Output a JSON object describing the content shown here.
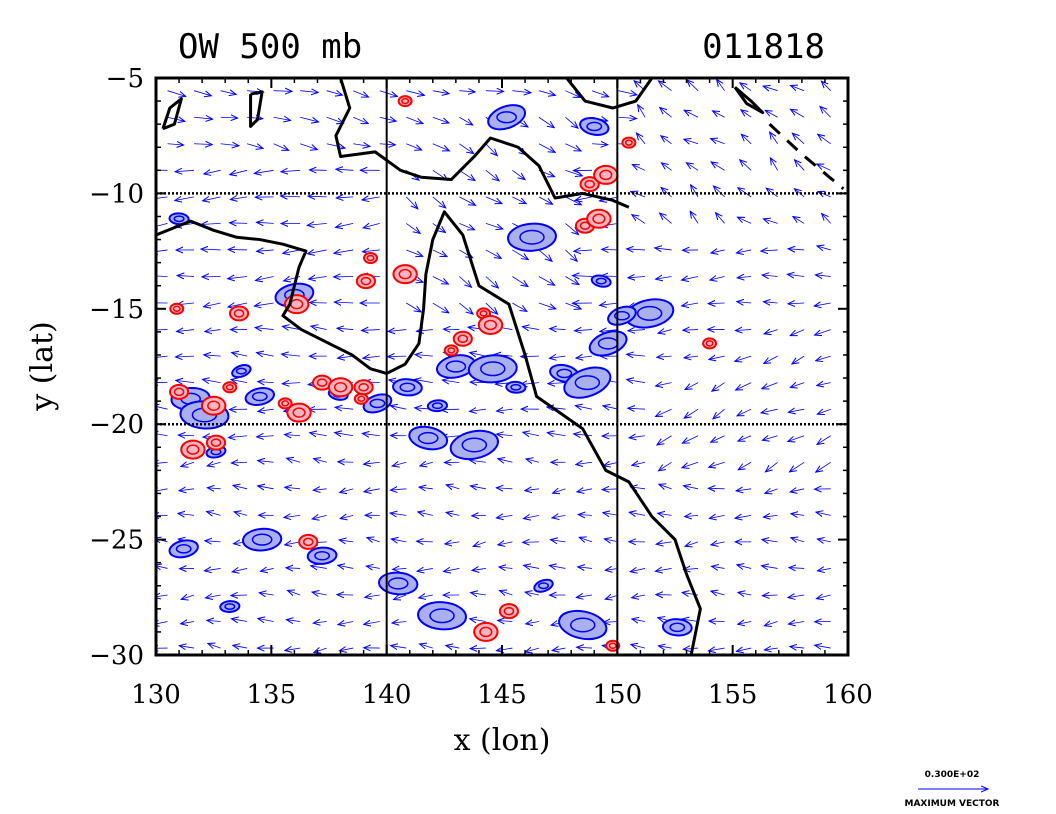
{
  "chart_data": {
    "type": "vector-field-contour-map",
    "title": "OW 500 mb",
    "date_label": "011818",
    "xlabel": "x (lon)",
    "ylabel": "y (lat)",
    "xlim": [
      130,
      160
    ],
    "ylim": [
      -30,
      -5
    ],
    "x_ticks": [
      130,
      135,
      140,
      145,
      150,
      155,
      160
    ],
    "y_ticks": [
      -5,
      -10,
      -15,
      -20,
      -25,
      -30
    ],
    "x_tick_labels": [
      "130",
      "135",
      "140",
      "145",
      "150",
      "155",
      "160"
    ],
    "y_tick_labels": [
      "−5",
      "−10",
      "−15",
      "−20",
      "−25",
      "−30"
    ],
    "dotted_grid_lat": [
      -10,
      -20
    ],
    "solid_grid_lon": [
      140,
      150
    ],
    "vector_legend": {
      "value_label": "0.300E+02",
      "caption": "MAXIMUM VECTOR"
    },
    "colors": {
      "vectors": "#0000ff",
      "negative_contours": "#0000ff",
      "negative_fill": "#aab0ee",
      "positive_contours": "#ff0000",
      "positive_fill": "#f4b6c0",
      "coastline": "#000000"
    },
    "coastline": [
      [
        [
          130.0,
          -11.8
        ],
        [
          131.5,
          -11.2
        ],
        [
          132.5,
          -11.6
        ],
        [
          133.5,
          -11.9
        ],
        [
          134.5,
          -12.0
        ],
        [
          135.5,
          -12.2
        ],
        [
          136.5,
          -12.5
        ],
        [
          136.2,
          -13.2
        ],
        [
          136.0,
          -14.0
        ],
        [
          135.8,
          -14.8
        ],
        [
          135.5,
          -15.3
        ],
        [
          136.3,
          -15.9
        ],
        [
          137.5,
          -16.5
        ],
        [
          138.5,
          -17.0
        ],
        [
          139.3,
          -17.6
        ],
        [
          140.0,
          -17.8
        ],
        [
          140.8,
          -17.4
        ],
        [
          141.4,
          -16.5
        ],
        [
          141.6,
          -15.0
        ],
        [
          141.7,
          -13.5
        ],
        [
          142.0,
          -12.0
        ],
        [
          142.5,
          -10.8
        ],
        [
          143.3,
          -11.8
        ],
        [
          144.0,
          -14.0
        ],
        [
          145.3,
          -14.8
        ],
        [
          146.0,
          -17.0
        ],
        [
          146.5,
          -18.8
        ],
        [
          147.5,
          -19.5
        ],
        [
          148.5,
          -20.2
        ],
        [
          149.5,
          -22.0
        ],
        [
          150.5,
          -22.5
        ],
        [
          151.5,
          -24.0
        ],
        [
          152.5,
          -25.0
        ],
        [
          153.0,
          -26.5
        ],
        [
          153.6,
          -28.0
        ],
        [
          153.2,
          -30.0
        ]
      ],
      [
        [
          138.0,
          -5.0
        ],
        [
          138.4,
          -6.3
        ],
        [
          137.8,
          -7.5
        ],
        [
          138.0,
          -8.4
        ],
        [
          139.5,
          -8.2
        ],
        [
          140.6,
          -9.0
        ],
        [
          141.5,
          -9.3
        ],
        [
          142.8,
          -9.4
        ],
        [
          143.8,
          -8.4
        ],
        [
          144.5,
          -7.6
        ],
        [
          145.7,
          -8.0
        ],
        [
          146.6,
          -8.8
        ],
        [
          147.3,
          -10.2
        ],
        [
          148.5,
          -10.0
        ],
        [
          149.8,
          -10.3
        ],
        [
          150.5,
          -10.6
        ]
      ],
      [
        [
          147.8,
          -5.0
        ],
        [
          148.6,
          -6.0
        ],
        [
          149.8,
          -6.3
        ],
        [
          150.8,
          -6.0
        ],
        [
          151.5,
          -5.0
        ]
      ],
      [
        [
          155.1,
          -5.4
        ],
        [
          155.8,
          -6.0
        ],
        [
          156.3,
          -6.5
        ],
        [
          155.6,
          -6.1
        ],
        [
          155.1,
          -5.4
        ]
      ],
      [
        [
          130.3,
          -7.2
        ],
        [
          130.6,
          -6.3
        ],
        [
          131.1,
          -5.9
        ],
        [
          130.8,
          -7.0
        ],
        [
          130.3,
          -7.2
        ]
      ],
      [
        [
          134.1,
          -5.7
        ],
        [
          134.6,
          -5.6
        ],
        [
          134.4,
          -6.8
        ],
        [
          134.1,
          -7.1
        ],
        [
          134.1,
          -5.7
        ]
      ]
    ],
    "coastline_dashed": [
      [
        [
          156.6,
          -7.0
        ],
        [
          158.0,
          -8.3
        ],
        [
          159.8,
          -9.8
        ]
      ]
    ],
    "positive_ow_maxima": [
      [
        140.8,
        -6.0
      ],
      [
        148.8,
        -9.6
      ],
      [
        149.5,
        -9.2
      ],
      [
        150.5,
        -7.8
      ],
      [
        148.6,
        -11.4
      ],
      [
        149.2,
        -11.1
      ],
      [
        139.3,
        -12.8
      ],
      [
        139.1,
        -13.8
      ],
      [
        140.8,
        -13.5
      ],
      [
        144.2,
        -15.2
      ],
      [
        143.3,
        -16.3
      ],
      [
        144.5,
        -15.7
      ],
      [
        142.8,
        -16.8
      ],
      [
        131.0,
        -18.6
      ],
      [
        132.5,
        -19.2
      ],
      [
        133.2,
        -18.4
      ],
      [
        137.2,
        -18.2
      ],
      [
        138.0,
        -18.4
      ],
      [
        138.9,
        -18.9
      ],
      [
        139.0,
        -18.4
      ],
      [
        136.2,
        -19.5
      ],
      [
        135.6,
        -19.1
      ],
      [
        132.6,
        -20.8
      ],
      [
        131.6,
        -21.1
      ],
      [
        130.9,
        -15.0
      ],
      [
        133.6,
        -15.2
      ],
      [
        136.1,
        -14.8
      ],
      [
        154.0,
        -16.5
      ],
      [
        145.3,
        -28.1
      ],
      [
        144.3,
        -29.0
      ],
      [
        149.8,
        -29.6
      ],
      [
        136.6,
        -25.1
      ]
    ],
    "negative_ow_minima": [
      [
        133.7,
        -17.7
      ],
      [
        134.5,
        -18.8
      ],
      [
        131.5,
        -18.9
      ],
      [
        132.1,
        -19.6
      ],
      [
        137.9,
        -18.7
      ],
      [
        139.6,
        -19.1
      ],
      [
        143.0,
        -17.5
      ],
      [
        144.6,
        -17.6
      ],
      [
        145.6,
        -18.4
      ],
      [
        147.7,
        -17.8
      ],
      [
        149.6,
        -16.5
      ],
      [
        151.4,
        -15.2
      ],
      [
        142.2,
        -19.2
      ],
      [
        140.9,
        -18.4
      ],
      [
        141.8,
        -20.6
      ],
      [
        148.7,
        -18.2
      ],
      [
        132.6,
        -21.2
      ],
      [
        137.2,
        -25.7
      ],
      [
        140.5,
        -26.9
      ],
      [
        148.5,
        -28.7
      ],
      [
        146.8,
        -27.0
      ],
      [
        131.2,
        -25.4
      ],
      [
        134.6,
        -25.0
      ],
      [
        142.4,
        -28.3
      ],
      [
        149.3,
        -13.8
      ],
      [
        150.2,
        -15.3
      ],
      [
        136.0,
        -14.4
      ],
      [
        146.3,
        -11.9
      ],
      [
        131.0,
        -11.1
      ],
      [
        149.0,
        -7.1
      ],
      [
        145.2,
        -6.7
      ],
      [
        143.8,
        -20.9
      ],
      [
        133.2,
        -27.9
      ],
      [
        152.6,
        -28.8
      ]
    ]
  }
}
